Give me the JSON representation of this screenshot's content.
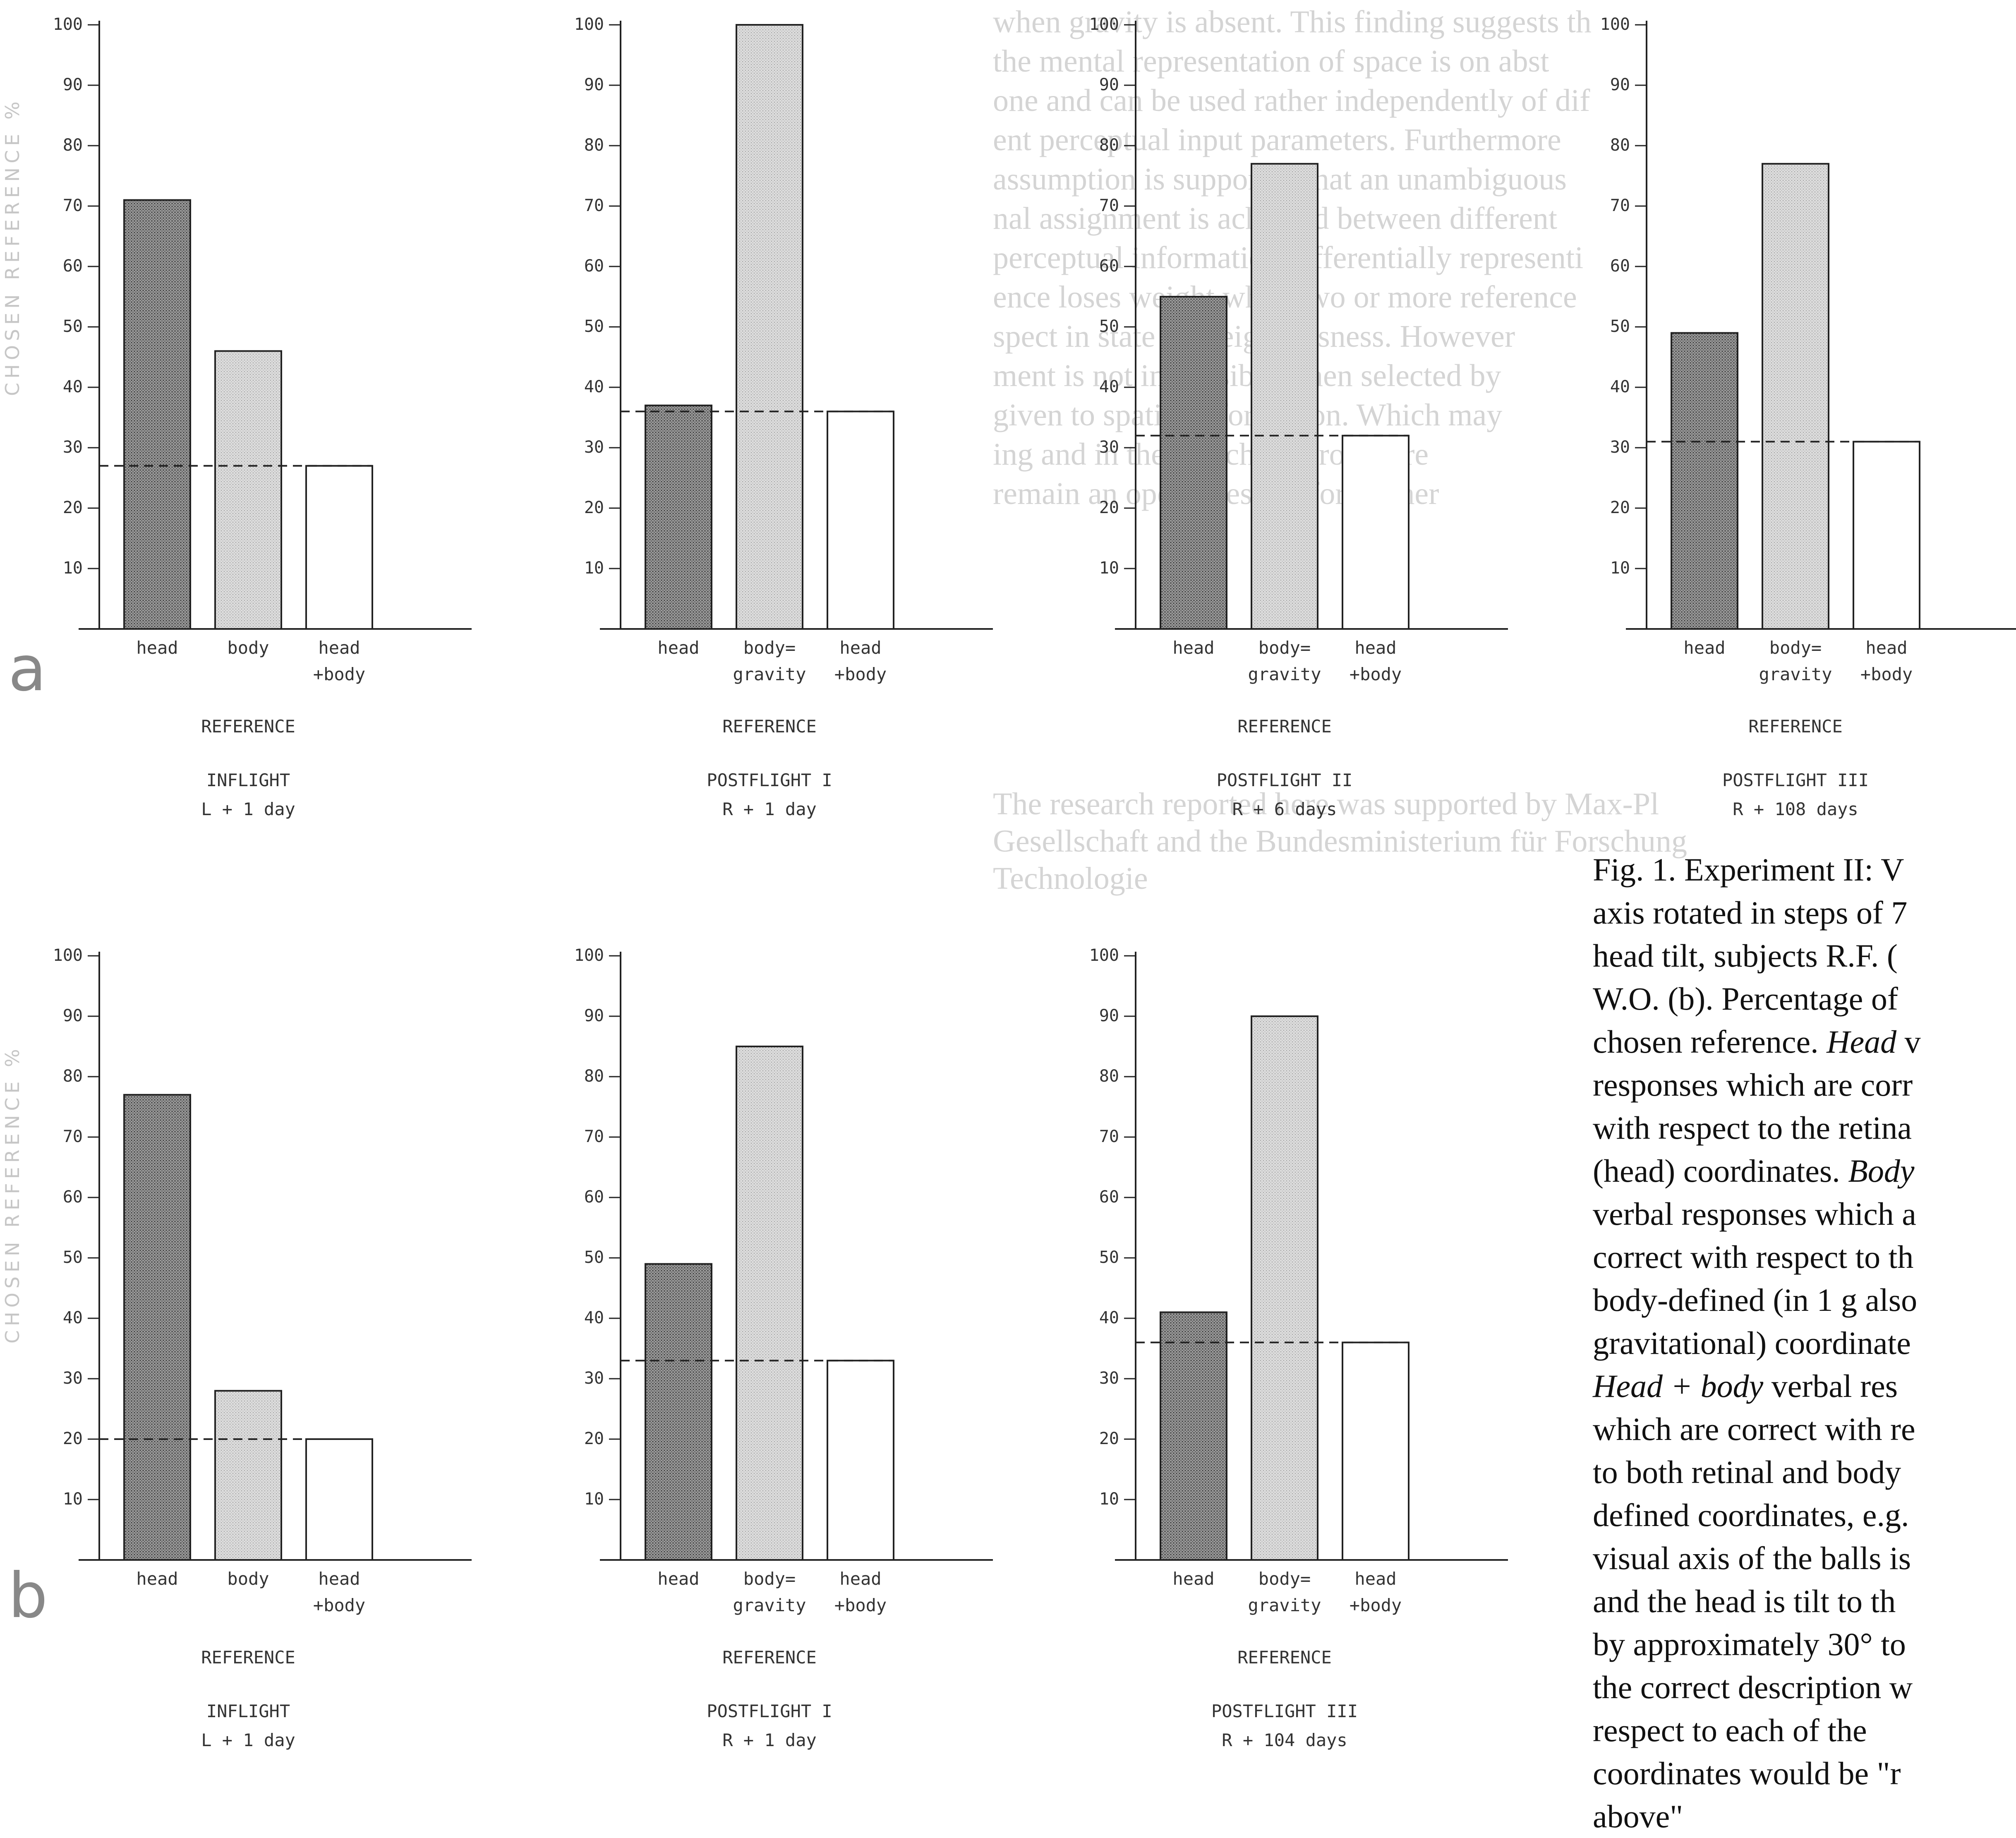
{
  "row_labels": [
    "a",
    "b"
  ],
  "axis_side_label": "CHOSEN REFERENCE %",
  "reference_word": "REFERENCE",
  "chart_data": [
    {
      "type": "bar",
      "row": "a",
      "condition": "INFLIGHT",
      "time": "L + 1 day",
      "categories": [
        "head",
        "body",
        "head\n+body"
      ],
      "values": [
        71,
        46,
        27
      ],
      "chance": 27,
      "ylim": [
        0,
        100
      ],
      "yticks": [
        10,
        20,
        30,
        40,
        50,
        60,
        70,
        80,
        90,
        100
      ],
      "xlabel": "REFERENCE"
    },
    {
      "type": "bar",
      "row": "a",
      "condition": "POSTFLIGHT I",
      "time": "R + 1 day",
      "categories": [
        "head",
        "body=\ngravity",
        "head\n+body"
      ],
      "values": [
        37,
        100,
        36
      ],
      "chance": 36,
      "ylim": [
        0,
        100
      ],
      "yticks": [
        10,
        20,
        30,
        40,
        50,
        60,
        70,
        80,
        90,
        100
      ],
      "xlabel": "REFERENCE"
    },
    {
      "type": "bar",
      "row": "a",
      "condition": "POSTFLIGHT II",
      "time": "R + 6 days",
      "categories": [
        "head",
        "body=\ngravity",
        "head\n+body"
      ],
      "values": [
        55,
        77,
        32
      ],
      "chance": 32,
      "ylim": [
        0,
        100
      ],
      "yticks": [
        10,
        20,
        30,
        40,
        50,
        60,
        70,
        80,
        90,
        100
      ],
      "xlabel": "REFERENCE"
    },
    {
      "type": "bar",
      "row": "a",
      "condition": "POSTFLIGHT III",
      "time": "R + 108 days",
      "categories": [
        "head",
        "body=\ngravity",
        "head\n+body"
      ],
      "values": [
        49,
        77,
        31
      ],
      "chance": 31,
      "ylim": [
        0,
        100
      ],
      "yticks": [
        10,
        20,
        30,
        40,
        50,
        60,
        70,
        80,
        90,
        100
      ],
      "xlabel": "REFERENCE"
    },
    {
      "type": "bar",
      "row": "b",
      "condition": "INFLIGHT",
      "time": "L + 1 day",
      "categories": [
        "head",
        "body",
        "head\n+body"
      ],
      "values": [
        77,
        28,
        20
      ],
      "chance": 20,
      "ylim": [
        0,
        100
      ],
      "yticks": [
        10,
        20,
        30,
        40,
        50,
        60,
        70,
        80,
        90,
        100
      ],
      "xlabel": "REFERENCE"
    },
    {
      "type": "bar",
      "row": "b",
      "condition": "POSTFLIGHT I",
      "time": "R + 1 day",
      "categories": [
        "head",
        "body=\ngravity",
        "head\n+body"
      ],
      "values": [
        49,
        85,
        33
      ],
      "chance": 33,
      "ylim": [
        0,
        100
      ],
      "yticks": [
        10,
        20,
        30,
        40,
        50,
        60,
        70,
        80,
        90,
        100
      ],
      "xlabel": "REFERENCE"
    },
    {
      "type": "bar",
      "row": "b",
      "condition": "POSTFLIGHT III",
      "time": "R + 104 days",
      "categories": [
        "head",
        "body=\ngravity",
        "head\n+body"
      ],
      "values": [
        41,
        90,
        36
      ],
      "chance": 36,
      "ylim": [
        0,
        100
      ],
      "yticks": [
        10,
        20,
        30,
        40,
        50,
        60,
        70,
        80,
        90,
        100
      ],
      "xlabel": "REFERENCE"
    }
  ],
  "caption": {
    "lines": [
      "Fig. 1. Experiment II: V",
      "axis rotated in steps of 7",
      "head tilt, subjects R.F. (",
      "W.O. (b). Percentage of",
      "chosen reference. Head v",
      "responses which are corr",
      "with respect to the retina",
      "(head) coordinates. Body",
      "verbal responses which a",
      "correct with respect to th",
      "body-defined (in 1 g also",
      "gravitational) coordinate",
      "Head + body verbal res",
      "which are correct with re",
      "to both retinal and body",
      "defined coordinates, e.g.",
      "visual axis of the balls is",
      "and the head is tilt to th",
      "by approximately 30° to",
      "the correct description w",
      "respect to each of the",
      "coordinates would be \"r",
      "above\""
    ]
  },
  "background_text": [
    "when gravity is absent. This finding suggests th",
    "the mental representation of space is on abst",
    "one and can be used rather independently of dif",
    "ent perceptual input parameters. Furthermore",
    "assumption is supported that an unambiguous",
    "nal assignment is achieved between different",
    "perceptual information differentially representi",
    "ence loses weight when two or more reference",
    "spect in state of weightlessness. However",
    "ment is not impossible when selected by",
    "given to spatial information. Which may",
    "ing and in the switching procedure",
    "remain an open question for further",
    "The research reported here was supported by Max-Pl",
    "Gesellschaft and the Bundesministerium für Forschung",
    "Technologie"
  ]
}
